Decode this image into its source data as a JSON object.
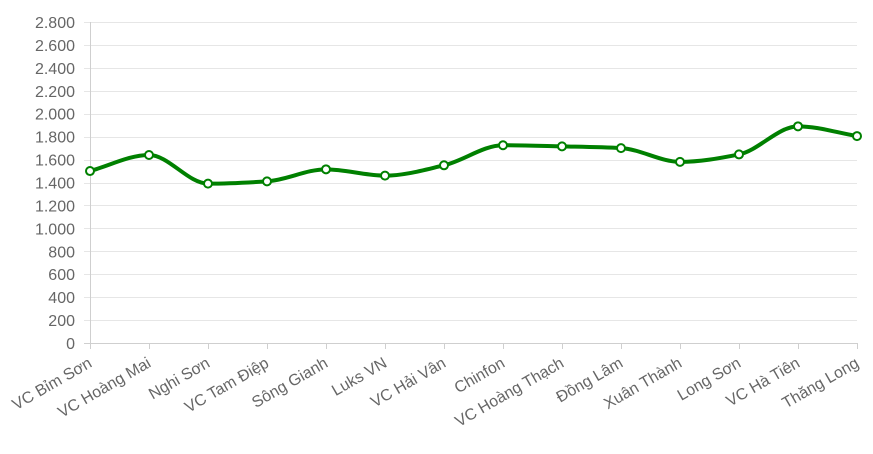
{
  "chart_data": {
    "type": "line",
    "title": "",
    "xlabel": "",
    "ylabel": "",
    "categories": [
      "VC Bỉm Sơn",
      "VC Hoàng Mai",
      "Nghi Sơn",
      "VC Tam Điệp",
      "Sông Gianh",
      "Luks VN",
      "VC Hải Vân",
      "Chinfon",
      "VC Hoàng Thạch",
      "Đồng Lâm",
      "Xuân Thành",
      "Long Sơn",
      "VC Hà Tiên",
      "Thăng Long"
    ],
    "series": [
      {
        "values": [
          1500,
          1640,
          1390,
          1410,
          1515,
          1460,
          1550,
          1725,
          1715,
          1700,
          1580,
          1645,
          1890,
          1805
        ],
        "color": "#008000"
      }
    ],
    "ylim": [
      0,
      2800
    ],
    "yticks": [
      0,
      200,
      400,
      600,
      800,
      1000,
      1200,
      1400,
      1600,
      1800,
      2000,
      2200,
      2400,
      2600,
      2800
    ],
    "ytick_labels": [
      "0",
      "200",
      "400",
      "600",
      "800",
      "1.000",
      "1.200",
      "1.400",
      "1.600",
      "1.800",
      "2.000",
      "2.200",
      "2.400",
      "2.600",
      "2.800"
    ],
    "grid": true,
    "legend": "none",
    "smooth": true
  }
}
